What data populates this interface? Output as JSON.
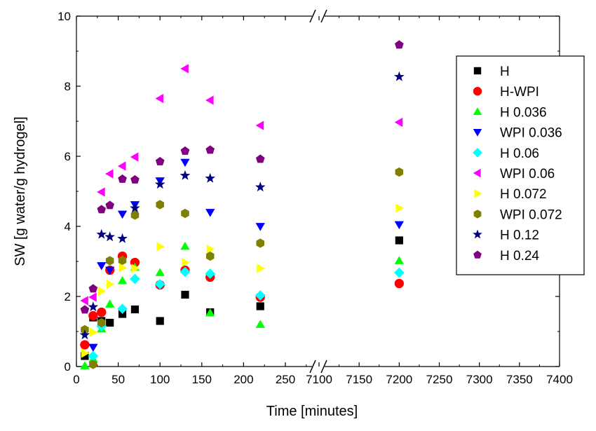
{
  "chart_data": {
    "type": "scatter",
    "xlabel": "Time [minutes]",
    "ylabel": "SW [g water/g hydrogel]",
    "ylim": [
      0,
      10
    ],
    "y_ticks": [
      "0",
      "2",
      "4",
      "6",
      "8",
      "10"
    ],
    "x_axis_break": {
      "left_segment": [
        0,
        250
      ],
      "right_segment": [
        7100,
        7400
      ]
    },
    "x_ticks_left": [
      "0",
      "50",
      "100",
      "150",
      "200",
      "250"
    ],
    "x_ticks_right": [
      "7100",
      "7150",
      "7200",
      "7250",
      "7300",
      "7350",
      "7400"
    ],
    "legend_position": "right",
    "series": [
      {
        "name": "H",
        "marker": "square",
        "color": "#000000",
        "points": [
          [
            10,
            0.3
          ],
          [
            20,
            1.4
          ],
          [
            30,
            1.3
          ],
          [
            40,
            1.25
          ],
          [
            55,
            1.5
          ],
          [
            70,
            1.63
          ],
          [
            100,
            1.3
          ],
          [
            130,
            2.05
          ],
          [
            160,
            1.55
          ],
          [
            220,
            1.72
          ],
          [
            7200,
            3.6
          ]
        ]
      },
      {
        "name": "H-WPI",
        "marker": "circle",
        "color": "#ff0000",
        "points": [
          [
            10,
            0.62
          ],
          [
            20,
            1.45
          ],
          [
            30,
            1.55
          ],
          [
            40,
            2.75
          ],
          [
            55,
            3.15
          ],
          [
            70,
            2.97
          ],
          [
            100,
            2.33
          ],
          [
            130,
            2.75
          ],
          [
            160,
            2.55
          ],
          [
            220,
            1.98
          ],
          [
            7200,
            2.37
          ]
        ]
      },
      {
        "name": "H 0.036",
        "marker": "triangle-up",
        "color": "#00ff00",
        "points": [
          [
            10,
            0.02
          ],
          [
            20,
            0.22
          ],
          [
            30,
            1.07
          ],
          [
            40,
            1.78
          ],
          [
            55,
            2.45
          ],
          [
            70,
            2.83
          ],
          [
            100,
            2.68
          ],
          [
            130,
            3.43
          ],
          [
            160,
            1.53
          ],
          [
            220,
            1.2
          ],
          [
            7200,
            3.02
          ]
        ]
      },
      {
        "name": "WPI 0.036",
        "marker": "triangle-down",
        "color": "#0000ff",
        "points": [
          [
            20,
            0.55
          ],
          [
            30,
            2.88
          ],
          [
            40,
            2.75
          ],
          [
            55,
            4.35
          ],
          [
            70,
            4.62
          ],
          [
            100,
            5.3
          ],
          [
            130,
            5.83
          ],
          [
            160,
            4.4
          ],
          [
            220,
            4.0
          ],
          [
            7200,
            4.05
          ]
        ]
      },
      {
        "name": "H 0.06",
        "marker": "diamond",
        "color": "#00ffff",
        "points": [
          [
            20,
            0.3
          ],
          [
            30,
            1.15
          ],
          [
            55,
            1.65
          ],
          [
            70,
            2.5
          ],
          [
            100,
            2.35
          ],
          [
            130,
            2.7
          ],
          [
            160,
            2.65
          ],
          [
            220,
            2.03
          ],
          [
            7200,
            2.68
          ]
        ]
      },
      {
        "name": "WPI 0.06",
        "marker": "triangle-left",
        "color": "#ff00ff",
        "points": [
          [
            10,
            1.88
          ],
          [
            20,
            1.98
          ],
          [
            30,
            4.98
          ],
          [
            40,
            5.5
          ],
          [
            55,
            5.72
          ],
          [
            70,
            5.98
          ],
          [
            100,
            7.65
          ],
          [
            130,
            8.5
          ],
          [
            160,
            7.6
          ],
          [
            220,
            6.88
          ],
          [
            7200,
            6.97
          ]
        ]
      },
      {
        "name": "H 0.072",
        "marker": "triangle-right",
        "color": "#ffff00",
        "points": [
          [
            10,
            0.38
          ],
          [
            20,
            0.98
          ],
          [
            30,
            2.15
          ],
          [
            40,
            2.35
          ],
          [
            55,
            2.82
          ],
          [
            70,
            2.8
          ],
          [
            100,
            3.42
          ],
          [
            130,
            2.97
          ],
          [
            160,
            3.35
          ],
          [
            220,
            2.8
          ],
          [
            7200,
            4.52
          ]
        ]
      },
      {
        "name": "WPI 0.072",
        "marker": "hexagon",
        "color": "#808000",
        "points": [
          [
            10,
            1.05
          ],
          [
            20,
            0.06
          ],
          [
            30,
            1.25
          ],
          [
            40,
            3.02
          ],
          [
            55,
            3.03
          ],
          [
            70,
            4.32
          ],
          [
            100,
            4.62
          ],
          [
            130,
            4.37
          ],
          [
            160,
            3.15
          ],
          [
            220,
            3.52
          ],
          [
            7200,
            5.55
          ]
        ]
      },
      {
        "name": "H 0.12",
        "marker": "star",
        "color": "#000080",
        "points": [
          [
            10,
            0.9
          ],
          [
            20,
            1.7
          ],
          [
            30,
            3.77
          ],
          [
            40,
            3.7
          ],
          [
            55,
            3.65
          ],
          [
            70,
            4.52
          ],
          [
            100,
            5.2
          ],
          [
            130,
            5.45
          ],
          [
            160,
            5.37
          ],
          [
            220,
            5.12
          ],
          [
            7200,
            8.27
          ]
        ]
      },
      {
        "name": "H 0.24",
        "marker": "pentagon",
        "color": "#800080",
        "points": [
          [
            10,
            1.62
          ],
          [
            20,
            2.22
          ],
          [
            30,
            4.48
          ],
          [
            40,
            4.6
          ],
          [
            55,
            5.35
          ],
          [
            70,
            5.33
          ],
          [
            100,
            5.85
          ],
          [
            130,
            6.15
          ],
          [
            160,
            6.18
          ],
          [
            220,
            5.92
          ],
          [
            7200,
            9.18
          ]
        ]
      }
    ]
  }
}
